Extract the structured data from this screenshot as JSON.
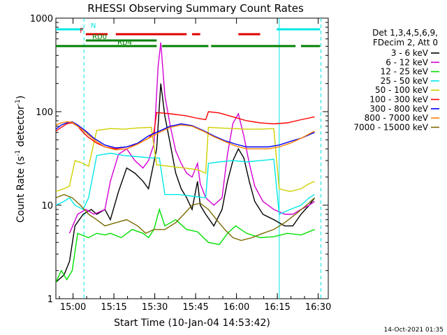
{
  "chart_data": {
    "type": "line",
    "title": "RHESSI Observing Summary Count Rates",
    "xlabel": "Start Time (10-Jan-04 14:53:42)",
    "ylabel_main": "Count Rate (s",
    "ylabel_sup1": "-1",
    "ylabel_mid": " detector",
    "ylabel_sup2": "-1",
    "ylabel_end": ")",
    "yscale": "log",
    "ylim": [
      1,
      1000
    ],
    "xlim_min": [
      0,
      100
    ],
    "x_ticks": [
      {
        "t": 6.3,
        "label": "15:00"
      },
      {
        "t": 21.3,
        "label": "15:15"
      },
      {
        "t": 36.3,
        "label": "15:30"
      },
      {
        "t": 51.3,
        "label": "15:45"
      },
      {
        "t": 66.3,
        "label": "16:00"
      },
      {
        "t": 81.3,
        "label": "16:15"
      },
      {
        "t": 96.3,
        "label": "16:30"
      }
    ],
    "y_ticks": [
      {
        "v": 1,
        "label": "1"
      },
      {
        "v": 10,
        "label": "10"
      },
      {
        "v": 100,
        "label": "100"
      },
      {
        "v": 1000,
        "label": "1000"
      }
    ],
    "legend_header": [
      "Det 1,3,4,5,6,9,",
      "FDecim 2, Att 0"
    ],
    "series": [
      {
        "name": "3 - 6 keV",
        "color": "#000000",
        "points": [
          [
            0,
            1.5
          ],
          [
            3,
            1.8
          ],
          [
            5,
            2.5
          ],
          [
            7,
            6
          ],
          [
            10,
            8
          ],
          [
            13,
            9
          ],
          [
            15,
            8
          ],
          [
            18,
            9
          ],
          [
            20,
            7
          ],
          [
            23,
            14
          ],
          [
            26,
            25
          ],
          [
            29,
            22
          ],
          [
            32,
            18
          ],
          [
            34,
            15
          ],
          [
            37,
            40
          ],
          [
            38.5,
            200
          ],
          [
            40,
            90
          ],
          [
            42,
            45
          ],
          [
            44,
            22
          ],
          [
            46,
            15
          ],
          [
            48,
            12
          ],
          [
            50,
            9
          ],
          [
            52,
            18
          ],
          [
            53,
            10
          ],
          [
            55,
            8
          ],
          [
            58,
            6
          ],
          [
            61,
            9
          ],
          [
            63,
            18
          ],
          [
            65,
            30
          ],
          [
            67,
            40
          ],
          [
            69,
            32
          ],
          [
            71,
            18
          ],
          [
            73,
            11
          ],
          [
            76,
            8
          ],
          [
            80,
            7
          ],
          [
            84,
            6
          ],
          [
            87,
            6
          ],
          [
            90,
            8
          ],
          [
            93,
            10
          ],
          [
            95,
            12
          ]
        ]
      },
      {
        "name": "6 - 12 keV",
        "color": "#d400d4",
        "points": [
          [
            5,
            5
          ],
          [
            8,
            8
          ],
          [
            11,
            9
          ],
          [
            14,
            8
          ],
          [
            18,
            9
          ],
          [
            20,
            18
          ],
          [
            23,
            35
          ],
          [
            26,
            40
          ],
          [
            29,
            30
          ],
          [
            32,
            25
          ],
          [
            34,
            30
          ],
          [
            36,
            45
          ],
          [
            37.5,
            300
          ],
          [
            38.5,
            550
          ],
          [
            40,
            150
          ],
          [
            42,
            70
          ],
          [
            44,
            38
          ],
          [
            46,
            28
          ],
          [
            48,
            22
          ],
          [
            50,
            20
          ],
          [
            52,
            28
          ],
          [
            53,
            17
          ],
          [
            55,
            12
          ],
          [
            58,
            10
          ],
          [
            61,
            12
          ],
          [
            63,
            35
          ],
          [
            65,
            75
          ],
          [
            67,
            95
          ],
          [
            69,
            55
          ],
          [
            71,
            28
          ],
          [
            73,
            16
          ],
          [
            76,
            11
          ],
          [
            80,
            9
          ],
          [
            84,
            8
          ],
          [
            87,
            8
          ],
          [
            90,
            9
          ],
          [
            93,
            10
          ],
          [
            95,
            11
          ]
        ]
      },
      {
        "name": "12 - 25 keV",
        "color": "#00e000",
        "points": [
          [
            0,
            1.5
          ],
          [
            2,
            2
          ],
          [
            4,
            1.6
          ],
          [
            6,
            2
          ],
          [
            8,
            5
          ],
          [
            12,
            4.5
          ],
          [
            15,
            5
          ],
          [
            18,
            4.8
          ],
          [
            20,
            5
          ],
          [
            24,
            4.5
          ],
          [
            28,
            5.5
          ],
          [
            32,
            5
          ],
          [
            34,
            4.5
          ],
          [
            36,
            5.5
          ],
          [
            38,
            9
          ],
          [
            40,
            6
          ],
          [
            44,
            7
          ],
          [
            48,
            5.5
          ],
          [
            52,
            5.2
          ],
          [
            56,
            4
          ],
          [
            60,
            3.8
          ],
          [
            63,
            5
          ],
          [
            66,
            6
          ],
          [
            70,
            5
          ],
          [
            75,
            4.5
          ],
          [
            80,
            4.6
          ],
          [
            85,
            5
          ],
          [
            90,
            4.8
          ],
          [
            95,
            5.5
          ]
        ]
      },
      {
        "name": "25 - 50 keV",
        "color": "#00e8e8",
        "points": [
          [
            0,
            10
          ],
          [
            3,
            11
          ],
          [
            5,
            12
          ],
          [
            7,
            10
          ],
          [
            10,
            9
          ],
          [
            12,
            12
          ],
          [
            15,
            34
          ],
          [
            20,
            36
          ],
          [
            25,
            34
          ],
          [
            30,
            33
          ],
          [
            35,
            32
          ],
          [
            38,
            32
          ],
          [
            40,
            13
          ],
          [
            45,
            13
          ],
          [
            50,
            12.5
          ],
          [
            55,
            12
          ],
          [
            56,
            28
          ],
          [
            60,
            29
          ],
          [
            65,
            30
          ],
          [
            70,
            29
          ],
          [
            75,
            30
          ],
          [
            80,
            31
          ],
          [
            82,
            8
          ],
          [
            86,
            9
          ],
          [
            90,
            10
          ],
          [
            93,
            12
          ],
          [
            95,
            13
          ]
        ]
      },
      {
        "name": "50 - 100 keV",
        "color": "#d0d000",
        "points": [
          [
            0,
            14
          ],
          [
            3,
            15
          ],
          [
            5,
            16
          ],
          [
            7,
            30
          ],
          [
            10,
            28
          ],
          [
            12,
            26
          ],
          [
            15,
            63
          ],
          [
            20,
            66
          ],
          [
            25,
            65
          ],
          [
            30,
            67
          ],
          [
            35,
            68
          ],
          [
            37,
            27
          ],
          [
            42,
            26
          ],
          [
            47,
            25
          ],
          [
            52,
            24
          ],
          [
            55,
            22
          ],
          [
            56,
            68
          ],
          [
            60,
            67
          ],
          [
            65,
            66
          ],
          [
            70,
            65
          ],
          [
            75,
            65
          ],
          [
            80,
            66
          ],
          [
            82,
            15
          ],
          [
            86,
            14
          ],
          [
            90,
            15
          ],
          [
            93,
            17
          ],
          [
            95,
            18
          ]
        ]
      },
      {
        "name": "100 - 300 keV",
        "color": "#ff0000",
        "points": [
          [
            0,
            62
          ],
          [
            2,
            68
          ],
          [
            4,
            74
          ],
          [
            6,
            76
          ],
          [
            8,
            70
          ],
          [
            10,
            60
          ],
          [
            12,
            53
          ],
          [
            15,
            46
          ],
          [
            18,
            42
          ],
          [
            22,
            40
          ],
          [
            26,
            42
          ],
          [
            30,
            45
          ],
          [
            34,
            52
          ],
          [
            36,
            60
          ],
          [
            37,
            98
          ],
          [
            42,
            95
          ],
          [
            48,
            90
          ],
          [
            52,
            85
          ],
          [
            55,
            82
          ],
          [
            56,
            100
          ],
          [
            60,
            97
          ],
          [
            65,
            88
          ],
          [
            70,
            80
          ],
          [
            75,
            76
          ],
          [
            80,
            74
          ],
          [
            85,
            76
          ],
          [
            90,
            82
          ],
          [
            95,
            88
          ]
        ]
      },
      {
        "name": "300 - 800 keV",
        "color": "#0000ff",
        "points": [
          [
            0,
            65
          ],
          [
            2,
            72
          ],
          [
            4,
            76
          ],
          [
            6,
            78
          ],
          [
            8,
            72
          ],
          [
            11,
            62
          ],
          [
            14,
            52
          ],
          [
            18,
            44
          ],
          [
            22,
            41
          ],
          [
            26,
            42
          ],
          [
            30,
            46
          ],
          [
            34,
            55
          ],
          [
            38,
            62
          ],
          [
            42,
            70
          ],
          [
            46,
            74
          ],
          [
            50,
            71
          ],
          [
            54,
            63
          ],
          [
            58,
            55
          ],
          [
            62,
            49
          ],
          [
            66,
            45
          ],
          [
            70,
            42
          ],
          [
            74,
            42
          ],
          [
            78,
            42
          ],
          [
            82,
            44
          ],
          [
            86,
            48
          ],
          [
            90,
            52
          ],
          [
            95,
            60
          ]
        ]
      },
      {
        "name": "800 - 7000 keV",
        "color": "#ff8000",
        "points": [
          [
            0,
            72
          ],
          [
            2,
            76
          ],
          [
            4,
            78
          ],
          [
            6,
            77
          ],
          [
            8,
            70
          ],
          [
            11,
            60
          ],
          [
            14,
            50
          ],
          [
            18,
            42
          ],
          [
            22,
            39
          ],
          [
            26,
            40
          ],
          [
            30,
            45
          ],
          [
            34,
            52
          ],
          [
            38,
            60
          ],
          [
            42,
            68
          ],
          [
            46,
            72
          ],
          [
            50,
            70
          ],
          [
            54,
            62
          ],
          [
            58,
            54
          ],
          [
            62,
            48
          ],
          [
            66,
            43
          ],
          [
            70,
            40
          ],
          [
            74,
            40
          ],
          [
            78,
            40
          ],
          [
            82,
            42
          ],
          [
            86,
            46
          ],
          [
            90,
            52
          ],
          [
            95,
            62
          ]
        ]
      },
      {
        "name": "7000 - 15000 keV",
        "color": "#7a6a00",
        "points": [
          [
            0,
            12
          ],
          [
            3,
            13
          ],
          [
            6,
            12
          ],
          [
            9,
            10
          ],
          [
            12,
            8
          ],
          [
            15,
            7
          ],
          [
            18,
            6
          ],
          [
            22,
            6.5
          ],
          [
            26,
            7
          ],
          [
            30,
            6
          ],
          [
            33,
            5
          ],
          [
            36,
            5.5
          ],
          [
            40,
            5.5
          ],
          [
            44,
            6.5
          ],
          [
            47,
            8
          ],
          [
            50,
            10
          ],
          [
            53,
            10.5
          ],
          [
            56,
            9
          ],
          [
            59,
            7
          ],
          [
            62,
            5.5
          ],
          [
            65,
            4.5
          ],
          [
            68,
            4.2
          ],
          [
            72,
            4.5
          ],
          [
            76,
            5
          ],
          [
            80,
            5.5
          ],
          [
            84,
            6.5
          ],
          [
            88,
            8
          ],
          [
            92,
            10
          ],
          [
            95,
            12
          ]
        ]
      }
    ],
    "state_bars": [
      {
        "label": "N",
        "color": "#00e8e8",
        "segments": [
          [
            0,
            10
          ],
          [
            81,
            97
          ]
        ]
      },
      {
        "label": "F",
        "color": "#e00000",
        "segments": [
          [
            11,
            19
          ],
          [
            22,
            48
          ],
          [
            50,
            53
          ],
          [
            67,
            75
          ]
        ]
      },
      {
        "label": "RD0",
        "color": "#008000",
        "segments": [
          [
            11,
            37
          ]
        ]
      },
      {
        "label": "RD4",
        "color": "#008000",
        "segments": [
          [
            0,
            37
          ],
          [
            39,
            56
          ],
          [
            57,
            88
          ],
          [
            90,
            97
          ]
        ]
      }
    ],
    "vertical_lines": [
      {
        "t": 10.3,
        "style": "dashed"
      },
      {
        "t": 82.0,
        "style": "solid"
      },
      {
        "t": 97.3,
        "style": "dashed"
      }
    ],
    "timestamp": "14-Oct-2021 01:35"
  }
}
